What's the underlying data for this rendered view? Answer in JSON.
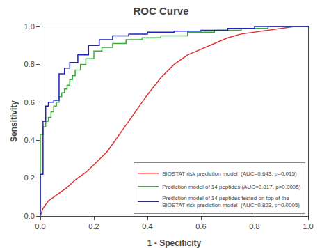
{
  "chart_data": {
    "type": "line",
    "title": "ROC Curve",
    "xlabel": "1 - Specificity",
    "ylabel": "Sensitivity",
    "xlim": [
      0.0,
      1.0
    ],
    "ylim": [
      0.0,
      1.0
    ],
    "xticks": [
      {
        "value": 0.0,
        "label": "0.0"
      },
      0.2,
      0.4,
      0.6,
      0.8,
      {
        "value": 1.0,
        "label": "1.0"
      }
    ],
    "yticks": [
      {
        "value": 0.0,
        "label": "0.0"
      },
      0.2,
      0.4,
      0.6,
      0.8,
      {
        "value": 1.0,
        "label": "1.0"
      }
    ],
    "grid": false,
    "legend": "lower right",
    "series": [
      {
        "name": "BIOSTAT risk prediction model  (AUC=0.643, p=0.015)",
        "color": "#e03030",
        "x": [
          0.0,
          0.005,
          0.01,
          0.02,
          0.03,
          0.05,
          0.07,
          0.1,
          0.13,
          0.17,
          0.2,
          0.25,
          0.3,
          0.35,
          0.4,
          0.45,
          0.5,
          0.55,
          0.6,
          0.65,
          0.7,
          0.75,
          0.8,
          0.85,
          0.9,
          0.95,
          1.0
        ],
        "values": [
          0.0,
          0.02,
          0.04,
          0.06,
          0.08,
          0.1,
          0.12,
          0.15,
          0.19,
          0.23,
          0.27,
          0.34,
          0.44,
          0.54,
          0.64,
          0.73,
          0.8,
          0.85,
          0.88,
          0.91,
          0.94,
          0.96,
          0.97,
          0.98,
          0.99,
          1.0,
          1.0
        ]
      },
      {
        "name": "Prediction model of 14 peptides (AUC=0.817, p=0.0005)",
        "color": "#3aaa3a",
        "x": [
          0.0,
          0.0,
          0.01,
          0.01,
          0.02,
          0.02,
          0.03,
          0.03,
          0.04,
          0.04,
          0.05,
          0.05,
          0.06,
          0.06,
          0.07,
          0.07,
          0.08,
          0.08,
          0.09,
          0.09,
          0.1,
          0.1,
          0.11,
          0.11,
          0.12,
          0.12,
          0.13,
          0.13,
          0.15,
          0.15,
          0.17,
          0.17,
          0.2,
          0.2,
          0.23,
          0.23,
          0.27,
          0.27,
          0.32,
          0.32,
          0.38,
          0.38,
          0.45,
          0.45,
          0.55,
          0.55,
          0.65,
          0.65,
          0.75,
          0.75,
          0.85,
          0.85,
          0.92,
          0.92,
          1.0
        ],
        "values": [
          0.0,
          0.43,
          0.43,
          0.47,
          0.47,
          0.5,
          0.5,
          0.52,
          0.52,
          0.55,
          0.55,
          0.58,
          0.58,
          0.6,
          0.6,
          0.63,
          0.63,
          0.65,
          0.65,
          0.67,
          0.67,
          0.69,
          0.69,
          0.72,
          0.72,
          0.74,
          0.74,
          0.77,
          0.77,
          0.8,
          0.8,
          0.83,
          0.83,
          0.87,
          0.87,
          0.89,
          0.89,
          0.91,
          0.91,
          0.93,
          0.93,
          0.94,
          0.94,
          0.95,
          0.95,
          0.97,
          0.97,
          0.98,
          0.98,
          0.99,
          0.99,
          1.0,
          1.0,
          1.0,
          1.0
        ]
      },
      {
        "name": "Prediction model of 14 peptides tested on top of the\nBIOSTAT risk prediction model  (AUC=0.823, p=0.0005)",
        "color": "#2222bb",
        "x": [
          0.0,
          0.0,
          0.01,
          0.01,
          0.02,
          0.02,
          0.03,
          0.03,
          0.05,
          0.05,
          0.07,
          0.07,
          0.09,
          0.09,
          0.11,
          0.11,
          0.14,
          0.14,
          0.18,
          0.18,
          0.22,
          0.22,
          0.27,
          0.27,
          0.33,
          0.33,
          0.4,
          0.4,
          0.5,
          0.5,
          0.6,
          0.6,
          0.7,
          0.7,
          0.8,
          0.8,
          0.88,
          0.88,
          0.95,
          0.95,
          1.0
        ],
        "values": [
          0.0,
          0.22,
          0.22,
          0.5,
          0.5,
          0.58,
          0.58,
          0.6,
          0.6,
          0.61,
          0.61,
          0.75,
          0.75,
          0.78,
          0.78,
          0.81,
          0.81,
          0.85,
          0.85,
          0.9,
          0.9,
          0.93,
          0.93,
          0.95,
          0.95,
          0.96,
          0.96,
          0.97,
          0.97,
          0.975,
          0.975,
          0.98,
          0.98,
          0.99,
          0.99,
          1.0,
          1.0,
          1.0,
          1.0,
          1.0,
          1.0
        ]
      }
    ]
  }
}
